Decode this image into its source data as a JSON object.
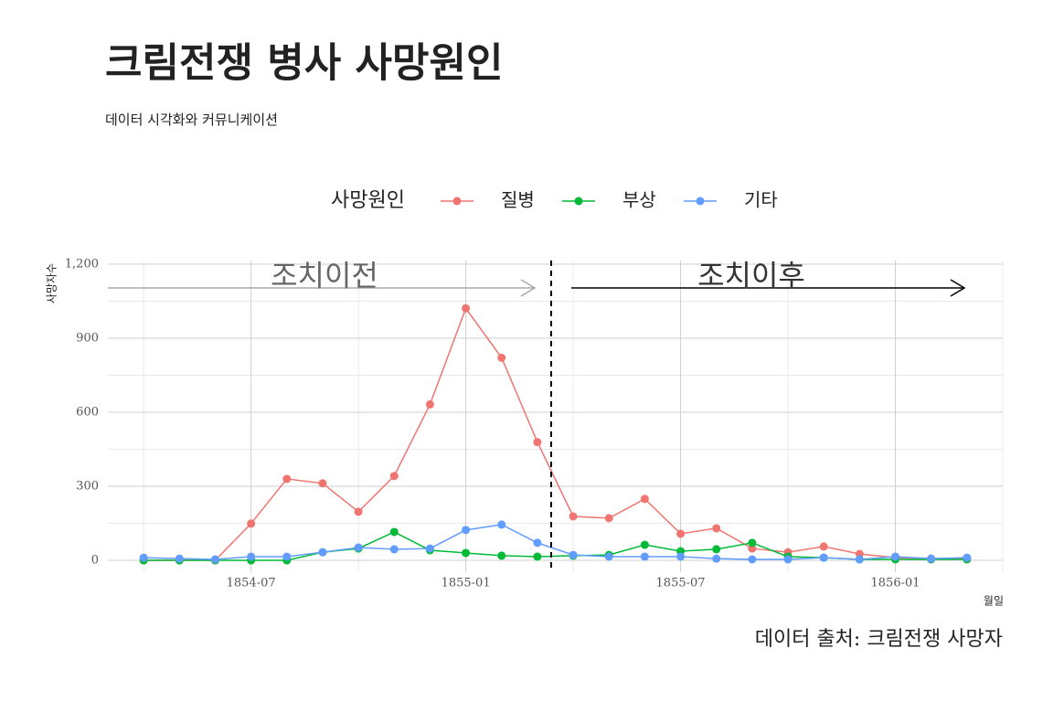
{
  "chart_data": {
    "type": "line",
    "title": "크림전쟁 병사 사망원인",
    "subtitle": "데이터 시각화와 커뮤니케이션",
    "caption": "데이터 출처: 크림전쟁 사망자",
    "x_label": "월일",
    "y_label": "사망자수",
    "legend_title": "사망원인",
    "legend": "top",
    "grid": true,
    "annotations": [
      "조치이전",
      "조치이후"
    ],
    "x": [
      "1854-04",
      "1854-05",
      "1854-06",
      "1854-07",
      "1854-08",
      "1854-09",
      "1854-10",
      "1854-11",
      "1854-12",
      "1855-01",
      "1855-02",
      "1855-03",
      "1855-04",
      "1855-05",
      "1855-06",
      "1855-07",
      "1855-08",
      "1855-09",
      "1855-10",
      "1855-11",
      "1855-12",
      "1856-01",
      "1856-02",
      "1856-03"
    ],
    "xlim": [
      "1854-03",
      "1856-04"
    ],
    "xticks": [
      "1854-07",
      "1855-01",
      "1855-07",
      "1856-01"
    ],
    "ylim": [
      -48,
      1215
    ],
    "yticks": [
      0,
      300,
      600,
      900,
      {
        "value": 1200,
        "label": "1,200"
      }
    ],
    "series": [
      {
        "name": "질병",
        "color": "#f07470",
        "values": [
          0,
          0,
          0,
          149,
          330,
          312,
          197,
          342,
          632,
          1021,
          821,
          479,
          178,
          171,
          249,
          108,
          130,
          48,
          33,
          56,
          26,
          11,
          7,
          7
        ]
      },
      {
        "name": "부상",
        "color": "#00ba38",
        "values": [
          0,
          0,
          0,
          0,
          0,
          33,
          48,
          115,
          41,
          30,
          19,
          15,
          19,
          22,
          63,
          37,
          45,
          71,
          15,
          11,
          4,
          4,
          4,
          4
        ]
      },
      {
        "name": "기타",
        "color": "#619cff",
        "values": [
          11,
          7,
          4,
          15,
          15,
          33,
          52,
          45,
          48,
          123,
          145,
          71,
          22,
          15,
          15,
          15,
          7,
          4,
          4,
          11,
          4,
          15,
          7,
          11
        ]
      }
    ]
  }
}
